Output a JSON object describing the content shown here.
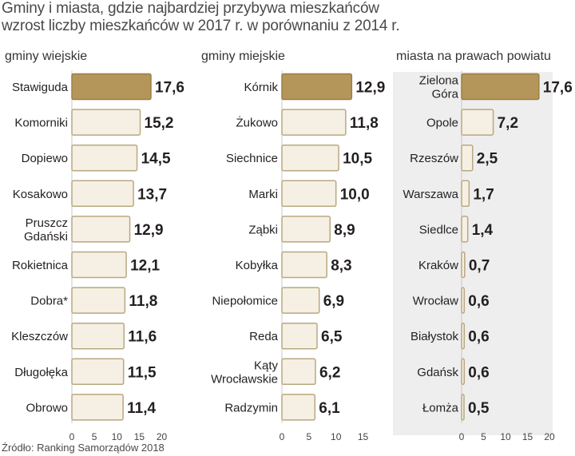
{
  "header": {
    "title": "Gminy i miasta, gdzie najbardziej przybywa mieszkańców",
    "subtitle": "wzrost liczby mieszkańców w 2017 r. w porównaniu z 2014 r."
  },
  "source": "Źródło: Ranking Samorządów 2018",
  "colors": {
    "bar_fill": "#f6efe4",
    "bar_stroke": "#b9a880",
    "highlight_fill": "#b5965a",
    "panel_bg": "#eeeeee",
    "text": "#231f20"
  },
  "chart_data": [
    {
      "type": "bar",
      "orientation": "horizontal",
      "title": "gminy wiejskie",
      "categories": [
        "Stawiguda",
        "Komorniki",
        "Dopiewo",
        "Kosakowo",
        "Pruszcz\nGdański",
        "Rokietnica",
        "Dobra*",
        "Kleszczów",
        "Długołęka",
        "Obrowo"
      ],
      "values": [
        17.6,
        15.2,
        14.5,
        13.7,
        12.9,
        12.1,
        11.8,
        11.6,
        11.5,
        11.4
      ],
      "value_labels": [
        "17,6",
        "15,2",
        "14,5",
        "13,7",
        "12,9",
        "12,1",
        "11,8",
        "11,6",
        "11,5",
        "11,4"
      ],
      "xlim": [
        0,
        20
      ],
      "ticks": [
        "0",
        "5",
        "10",
        "15",
        "20"
      ],
      "highlight_index": 0
    },
    {
      "type": "bar",
      "orientation": "horizontal",
      "title": "gminy miejskie",
      "categories": [
        "Kórnik",
        "Żukowo",
        "Siechnice",
        "Marki",
        "Ząbki",
        "Kobyłka",
        "Niepołomice",
        "Reda",
        "Kąty\nWrocławskie",
        "Radzymin"
      ],
      "values": [
        12.9,
        11.8,
        10.5,
        10.0,
        8.9,
        8.3,
        6.9,
        6.5,
        6.2,
        6.1
      ],
      "value_labels": [
        "12,9",
        "11,8",
        "10,5",
        "10,0",
        "8,9",
        "8,3",
        "6,9",
        "6,5",
        "6,2",
        "6,1"
      ],
      "xlim": [
        0,
        15
      ],
      "ticks": [
        "0",
        "5",
        "10",
        "15"
      ],
      "highlight_index": 0
    },
    {
      "type": "bar",
      "orientation": "horizontal",
      "title": "miasta na prawach powiatu",
      "categories": [
        "Zielona\nGóra",
        "Opole",
        "Rzeszów",
        "Warszawa",
        "Siedlce",
        "Kraków",
        "Wrocław",
        "Białystok",
        "Gdańsk",
        "Łomża"
      ],
      "values": [
        17.6,
        7.2,
        2.5,
        1.7,
        1.4,
        0.7,
        0.6,
        0.6,
        0.6,
        0.5
      ],
      "value_labels": [
        "17,6",
        "7,2",
        "2,5",
        "1,7",
        "1,4",
        "0,7",
        "0,6",
        "0,6",
        "0,6",
        "0,5"
      ],
      "xlim": [
        0,
        20
      ],
      "ticks": [
        "0",
        "5",
        "10",
        "15",
        "20"
      ],
      "highlight_index": 0
    }
  ]
}
